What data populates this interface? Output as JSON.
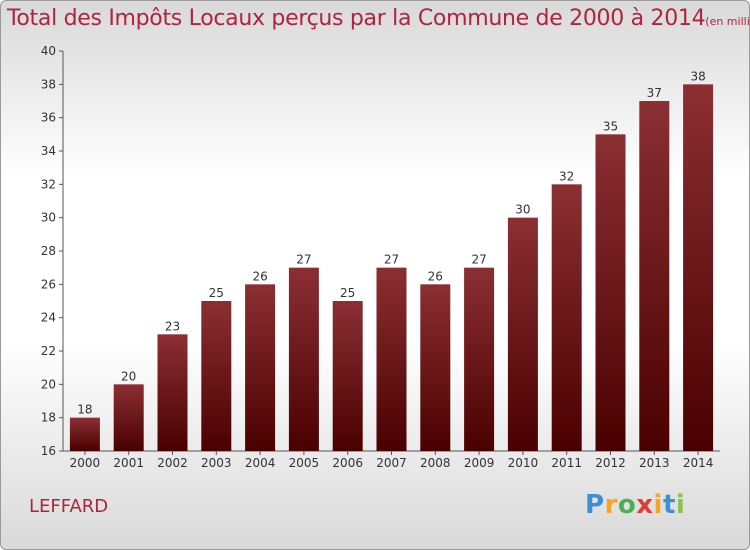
{
  "title": "Total des Impôts Locaux perçus par la Commune de 2000 à 2014",
  "unit_note": "(en milliers d'€)",
  "commune": "LEFFARD",
  "logo": {
    "letters": [
      "P",
      "r",
      "o",
      "x",
      "i",
      "t",
      "i"
    ],
    "colors": [
      "#3e8ed6",
      "#f4a623",
      "#4caf50",
      "#e53935",
      "#f4a623",
      "#3e8ed6",
      "#8bc34a"
    ]
  },
  "colors": {
    "bar_top": "#8b2f33",
    "bar_bottom": "#4a0000",
    "title": "#b0243c"
  },
  "chart_data": {
    "type": "bar",
    "categories": [
      "2000",
      "2001",
      "2002",
      "2003",
      "2004",
      "2005",
      "2006",
      "2007",
      "2008",
      "2009",
      "2010",
      "2011",
      "2012",
      "2013",
      "2014"
    ],
    "values": [
      18,
      20,
      23,
      25,
      26,
      27,
      25,
      27,
      26,
      27,
      30,
      32,
      35,
      37,
      38
    ],
    "data_labels": [
      "18",
      "20",
      "23",
      "25",
      "26",
      "27",
      "25",
      "27",
      "26",
      "27",
      "30",
      "32",
      "35",
      "37",
      "38"
    ],
    "yticks": [
      16,
      18,
      20,
      22,
      24,
      26,
      28,
      30,
      32,
      34,
      36,
      38,
      40
    ],
    "ytick_labels": [
      "16",
      "18",
      "20",
      "22",
      "24",
      "26",
      "28",
      "30",
      "32",
      "34",
      "36",
      "38",
      "40"
    ],
    "ylim": [
      16,
      40
    ],
    "grid": false,
    "legend": "none"
  }
}
